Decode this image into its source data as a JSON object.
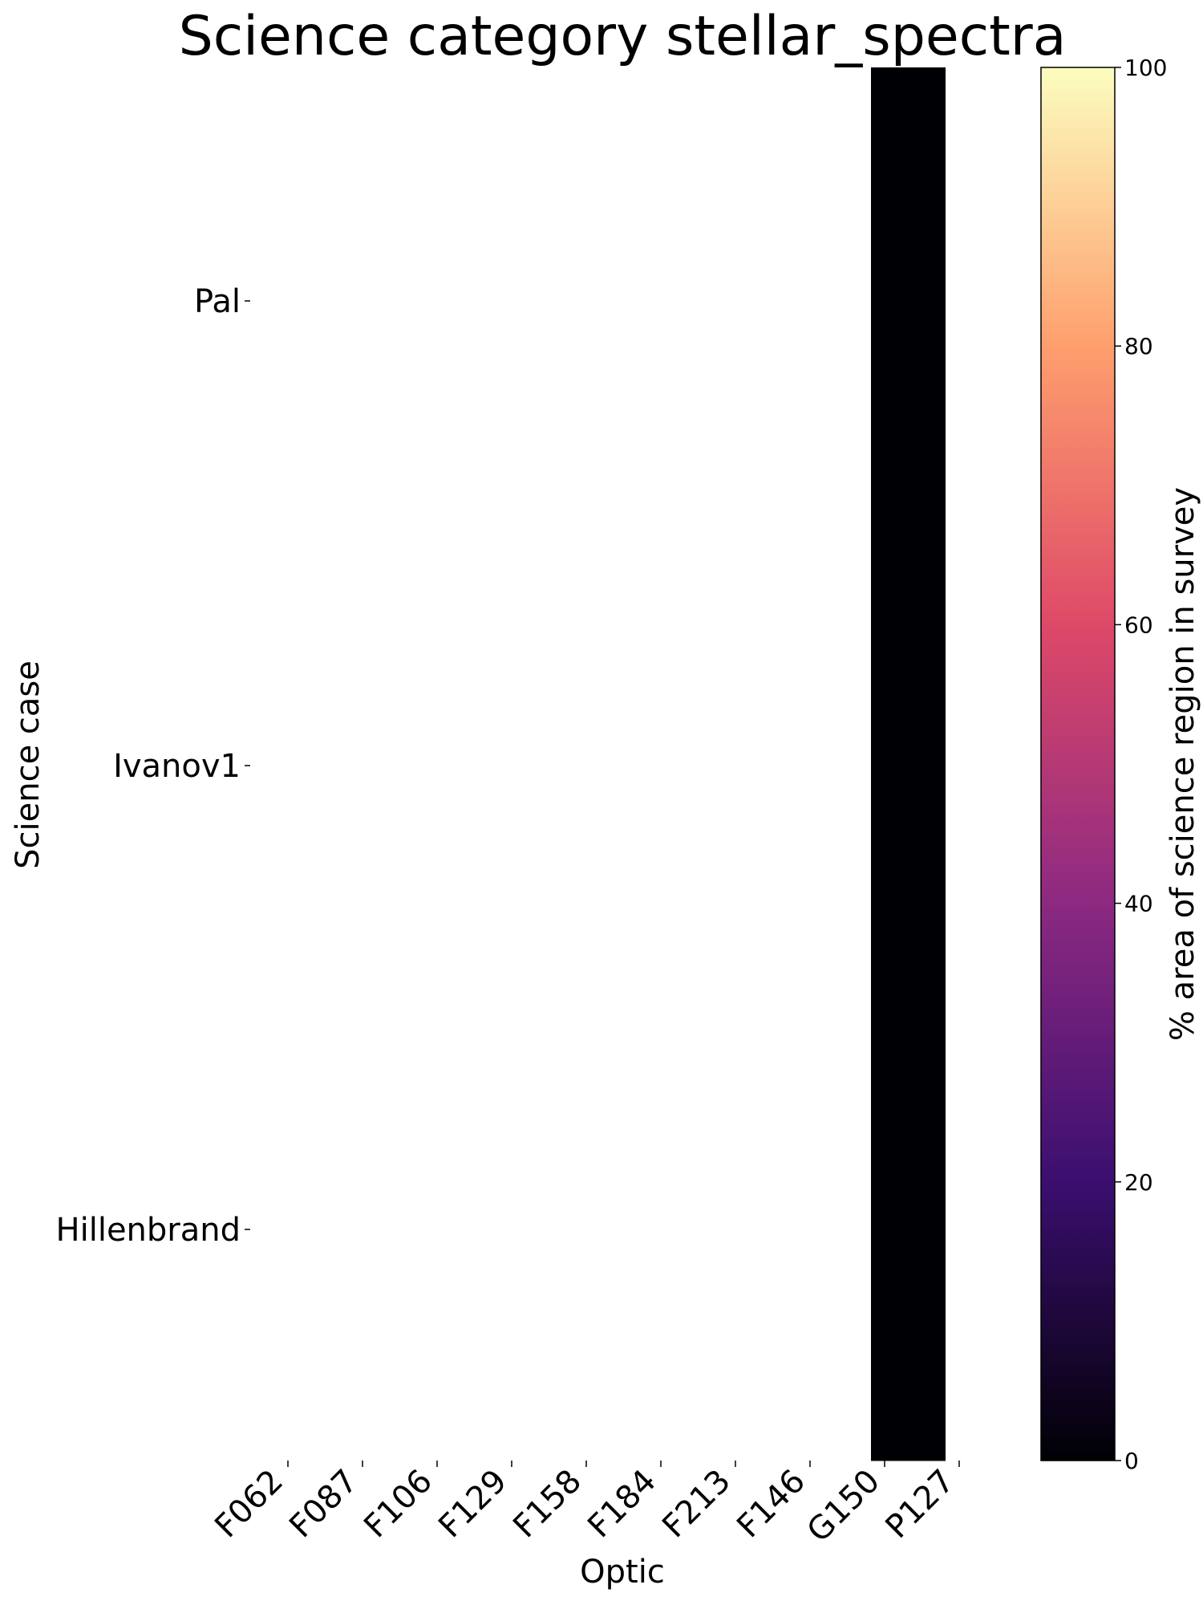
{
  "chart_data": {
    "type": "heatmap",
    "title": "Science category stellar_spectra",
    "xlabel": "Optic",
    "ylabel": "Science case",
    "x_categories": [
      "F062",
      "F087",
      "F106",
      "F129",
      "F158",
      "F184",
      "F213",
      "F146",
      "G150",
      "P127"
    ],
    "y_categories": [
      "Pal",
      "Ivanov1",
      "Hillenbrand"
    ],
    "values": [
      [
        null,
        null,
        null,
        null,
        null,
        null,
        null,
        null,
        0,
        null
      ],
      [
        null,
        null,
        null,
        null,
        null,
        null,
        null,
        null,
        0,
        null
      ],
      [
        null,
        null,
        null,
        null,
        null,
        null,
        null,
        null,
        0,
        null
      ]
    ],
    "colorbar": {
      "label": "% area of science region in survey",
      "colormap": "magma",
      "range": [
        0,
        100
      ],
      "ticks": [
        "0",
        "20",
        "40",
        "60",
        "80",
        "100"
      ],
      "colors": [
        "#000004",
        "#3b0f70",
        "#8c2981",
        "#de4968",
        "#fe9f6d",
        "#fcfdbf"
      ]
    },
    "grid": false
  }
}
